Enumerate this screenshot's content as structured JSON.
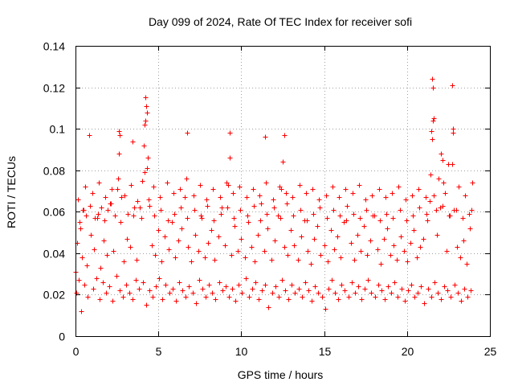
{
  "chart_data": {
    "type": "scatter",
    "title": "Day 099 of 2024, Rate Of TEC Index for receiver sofi",
    "xlabel": "GPS time / hours",
    "ylabel": "ROTI / TECUs",
    "xlim": [
      0,
      25
    ],
    "ylim": [
      0,
      0.14
    ],
    "xticks": [
      0,
      5,
      10,
      15,
      20,
      25
    ],
    "yticks": [
      0,
      0.02,
      0.04,
      0.06,
      0.08,
      0.1,
      0.12,
      0.14
    ],
    "xtick_labels": [
      "0",
      "5",
      "10",
      "15",
      "20",
      "25"
    ],
    "ytick_labels": [
      "0",
      "0.02",
      "0.04",
      "0.06",
      "0.08",
      "0.1",
      "0.12",
      "0.14"
    ],
    "grid": true,
    "legend": "none",
    "marker": "+",
    "series": [
      {
        "name": "sofi",
        "color": "#ff0000",
        "x": [
          0.0,
          0.1,
          0.2,
          0.3,
          0.4,
          0.5,
          0.7,
          0.9,
          1.1,
          1.3,
          1.5,
          1.7,
          1.9,
          2.1,
          2.3,
          2.5,
          2.6,
          2.7,
          2.9,
          3.1,
          3.3,
          3.5,
          3.7,
          3.9,
          4.0,
          4.1,
          4.2,
          4.3,
          4.4,
          4.6,
          4.8,
          5.0,
          5.2,
          5.4,
          5.6,
          5.8,
          6.0,
          6.2,
          6.4,
          6.6,
          6.8,
          7.0,
          7.2,
          7.4,
          7.6,
          7.8,
          8.0,
          8.2,
          8.4,
          8.6,
          8.8,
          9.0,
          9.2,
          9.4,
          9.6,
          9.8,
          10.0,
          10.2,
          10.4,
          10.6,
          10.8,
          11.0,
          11.2,
          11.4,
          11.6,
          11.8,
          12.0,
          12.2,
          12.4,
          12.6,
          12.8,
          13.0,
          13.2,
          13.4,
          13.6,
          13.8,
          14.0,
          14.2,
          14.4,
          14.6,
          14.8,
          15.0,
          15.2,
          15.4,
          15.6,
          15.8,
          16.0,
          16.2,
          16.4,
          16.6,
          16.8,
          17.0,
          17.2,
          17.4,
          17.6,
          17.8,
          18.0,
          18.2,
          18.4,
          18.6,
          18.8,
          19.0,
          19.2,
          19.4,
          19.6,
          19.8,
          20.0,
          20.2,
          20.4,
          20.6,
          20.8,
          21.0,
          21.2,
          21.4,
          21.5,
          21.6,
          21.8,
          22.0,
          22.2,
          22.4,
          22.6,
          22.7,
          22.8,
          23.0,
          23.2,
          23.4,
          23.6,
          23.8,
          23.9,
          0.05,
          0.35,
          0.55,
          0.75,
          1.05,
          1.25,
          1.45,
          1.65,
          1.85,
          2.05,
          2.25,
          2.45,
          2.65,
          2.85,
          3.05,
          3.25,
          3.45,
          3.65,
          3.85,
          4.05,
          4.25,
          4.45,
          4.65,
          4.85,
          5.05,
          5.25,
          5.45,
          5.65,
          5.85,
          6.05,
          6.25,
          6.45,
          6.65,
          6.85,
          7.05,
          7.25,
          7.45,
          7.65,
          7.85,
          8.05,
          8.25,
          8.45,
          8.65,
          8.85,
          9.05,
          9.25,
          9.45,
          9.65,
          9.85,
          10.05,
          10.25,
          10.45,
          10.65,
          10.85,
          11.05,
          11.25,
          11.45,
          11.65,
          11.85,
          12.05,
          12.25,
          12.45,
          12.65,
          12.85,
          13.05,
          13.25,
          13.45,
          13.65,
          13.85,
          14.05,
          14.25,
          14.45,
          14.65,
          14.85,
          15.05,
          15.25,
          15.45,
          15.65,
          15.85,
          16.05,
          16.25,
          16.45,
          16.65,
          16.85,
          17.05,
          17.25,
          17.45,
          17.65,
          17.85,
          18.05,
          18.25,
          18.45,
          18.65,
          18.85,
          19.05,
          19.25,
          19.45,
          19.65,
          19.85,
          20.05,
          20.25,
          20.45,
          20.65,
          20.85,
          21.05,
          21.25,
          21.45,
          21.65,
          21.85,
          22.05,
          22.25,
          22.45,
          22.65,
          22.85,
          23.05,
          23.25,
          23.45,
          23.65,
          23.85,
          0.15,
          0.6,
          1.0,
          1.4,
          1.8,
          2.2,
          2.55,
          2.95,
          3.35,
          3.75,
          4.15,
          4.35,
          4.7,
          5.1,
          5.5,
          5.9,
          6.3,
          6.7,
          7.1,
          7.5,
          7.9,
          8.3,
          8.7,
          9.1,
          9.3,
          9.5,
          9.9,
          10.3,
          10.7,
          11.1,
          11.5,
          11.9,
          12.3,
          12.5,
          12.7,
          13.1,
          13.5,
          13.9,
          14.3,
          14.7,
          15.1,
          15.5,
          15.9,
          16.3,
          16.7,
          17.1,
          17.5,
          17.9,
          18.3,
          18.7,
          19.1,
          19.5,
          19.9,
          20.3,
          20.7,
          21.1,
          21.45,
          21.55,
          21.9,
          22.3,
          22.5,
          22.75,
          23.1,
          23.5,
          23.95,
          0.25,
          0.45,
          0.65,
          0.85,
          1.15,
          1.35,
          1.55,
          1.75,
          1.95,
          2.15,
          2.35,
          2.75,
          3.15,
          3.55,
          3.95,
          4.45,
          4.75,
          5.15,
          5.55,
          5.95,
          6.35,
          6.75,
          7.15,
          7.55,
          7.95,
          8.35,
          8.75,
          9.15,
          9.55,
          9.95,
          10.35,
          10.75,
          11.15,
          11.55,
          11.95,
          12.35,
          12.75,
          13.15,
          13.55,
          13.95,
          14.35,
          14.75,
          15.15,
          15.55,
          15.95,
          16.35,
          16.75,
          17.15,
          17.55,
          17.95,
          18.35,
          18.75,
          19.15,
          19.55,
          19.95,
          20.35,
          20.75,
          21.15,
          21.35,
          21.75,
          22.15,
          22.55,
          22.95,
          23.35,
          23.75,
          4.22,
          4.28,
          4.32,
          4.18,
          21.52,
          21.58,
          21.62,
          22.72,
          22.78,
          2.62,
          2.68,
          6.72,
          9.32,
          12.62,
          11.42,
          3.42,
          0.82,
          22.05,
          22.12
        ],
        "y": [
          0.031,
          0.045,
          0.027,
          0.052,
          0.038,
          0.061,
          0.034,
          0.049,
          0.042,
          0.057,
          0.033,
          0.046,
          0.039,
          0.064,
          0.041,
          0.071,
          0.088,
          0.055,
          0.036,
          0.047,
          0.043,
          0.058,
          0.037,
          0.062,
          0.075,
          0.092,
          0.104,
          0.081,
          0.066,
          0.044,
          0.039,
          0.051,
          0.036,
          0.048,
          0.042,
          0.055,
          0.038,
          0.046,
          0.052,
          0.067,
          0.043,
          0.036,
          0.049,
          0.041,
          0.057,
          0.038,
          0.045,
          0.051,
          0.037,
          0.048,
          0.062,
          0.044,
          0.073,
          0.039,
          0.053,
          0.041,
          0.047,
          0.038,
          0.055,
          0.043,
          0.036,
          0.049,
          0.064,
          0.041,
          0.052,
          0.037,
          0.046,
          0.058,
          0.071,
          0.043,
          0.039,
          0.051,
          0.044,
          0.037,
          0.048,
          0.056,
          0.041,
          0.035,
          0.047,
          0.053,
          0.039,
          0.044,
          0.036,
          0.051,
          0.042,
          0.048,
          0.038,
          0.055,
          0.063,
          0.045,
          0.037,
          0.049,
          0.041,
          0.053,
          0.039,
          0.046,
          0.058,
          0.042,
          0.035,
          0.047,
          0.052,
          0.039,
          0.044,
          0.037,
          0.048,
          0.041,
          0.036,
          0.045,
          0.051,
          0.038,
          0.043,
          0.047,
          0.056,
          0.078,
          0.095,
          0.068,
          0.049,
          0.062,
          0.074,
          0.041,
          0.058,
          0.083,
          0.061,
          0.043,
          0.038,
          0.046,
          0.035,
          0.052,
          0.061,
          0.021,
          0.012,
          0.025,
          0.019,
          0.023,
          0.028,
          0.018,
          0.026,
          0.021,
          0.024,
          0.017,
          0.029,
          0.022,
          0.019,
          0.025,
          0.021,
          0.018,
          0.027,
          0.023,
          0.026,
          0.015,
          0.022,
          0.019,
          0.024,
          0.028,
          0.018,
          0.025,
          0.021,
          0.023,
          0.017,
          0.026,
          0.022,
          0.019,
          0.024,
          0.021,
          0.016,
          0.027,
          0.023,
          0.019,
          0.025,
          0.021,
          0.018,
          0.026,
          0.022,
          0.024,
          0.019,
          0.023,
          0.017,
          0.025,
          0.021,
          0.028,
          0.019,
          0.023,
          0.026,
          0.018,
          0.022,
          0.025,
          0.014,
          0.021,
          0.024,
          0.019,
          0.027,
          0.022,
          0.018,
          0.025,
          0.021,
          0.023,
          0.019,
          0.026,
          0.022,
          0.017,
          0.024,
          0.021,
          0.019,
          0.013,
          0.023,
          0.027,
          0.021,
          0.018,
          0.025,
          0.022,
          0.019,
          0.026,
          0.021,
          0.024,
          0.018,
          0.023,
          0.027,
          0.021,
          0.019,
          0.025,
          0.022,
          0.018,
          0.024,
          0.021,
          0.026,
          0.019,
          0.023,
          0.017,
          0.022,
          0.025,
          0.019,
          0.021,
          0.024,
          0.016,
          0.023,
          0.019,
          0.026,
          0.021,
          0.018,
          0.024,
          0.022,
          0.019,
          0.025,
          0.021,
          0.017,
          0.023,
          0.019,
          0.022,
          0.066,
          0.072,
          0.069,
          0.074,
          0.067,
          0.071,
          0.076,
          0.068,
          0.073,
          0.065,
          0.079,
          0.086,
          0.072,
          0.067,
          0.074,
          0.069,
          0.071,
          0.076,
          0.068,
          0.073,
          0.066,
          0.071,
          0.067,
          0.074,
          0.086,
          0.069,
          0.072,
          0.067,
          0.071,
          0.068,
          0.074,
          0.066,
          0.072,
          0.084,
          0.069,
          0.067,
          0.073,
          0.069,
          0.071,
          0.066,
          0.068,
          0.072,
          0.067,
          0.071,
          0.069,
          0.073,
          0.066,
          0.068,
          0.071,
          0.067,
          0.069,
          0.072,
          0.066,
          0.068,
          0.071,
          0.067,
          0.099,
          0.104,
          0.076,
          0.069,
          0.083,
          0.098,
          0.072,
          0.068,
          0.074,
          0.055,
          0.061,
          0.058,
          0.063,
          0.057,
          0.059,
          0.062,
          0.056,
          0.061,
          0.064,
          0.058,
          0.067,
          0.059,
          0.062,
          0.057,
          0.063,
          0.058,
          0.061,
          0.056,
          0.059,
          0.062,
          0.057,
          0.061,
          0.058,
          0.063,
          0.056,
          0.059,
          0.062,
          0.057,
          0.061,
          0.058,
          0.063,
          0.056,
          0.059,
          0.062,
          0.057,
          0.064,
          0.058,
          0.061,
          0.056,
          0.059,
          0.062,
          0.057,
          0.061,
          0.058,
          0.056,
          0.059,
          0.057,
          0.061,
          0.058,
          0.056,
          0.059,
          0.057,
          0.061,
          0.056,
          0.058,
          0.062,
          0.059,
          0.065,
          0.061,
          0.063,
          0.058,
          0.061,
          0.057,
          0.059,
          0.115,
          0.111,
          0.108,
          0.102,
          0.124,
          0.12,
          0.105,
          0.121,
          0.1,
          0.099,
          0.097,
          0.098,
          0.098,
          0.097,
          0.096,
          0.094,
          0.097,
          0.088,
          0.085
        ]
      }
    ]
  }
}
